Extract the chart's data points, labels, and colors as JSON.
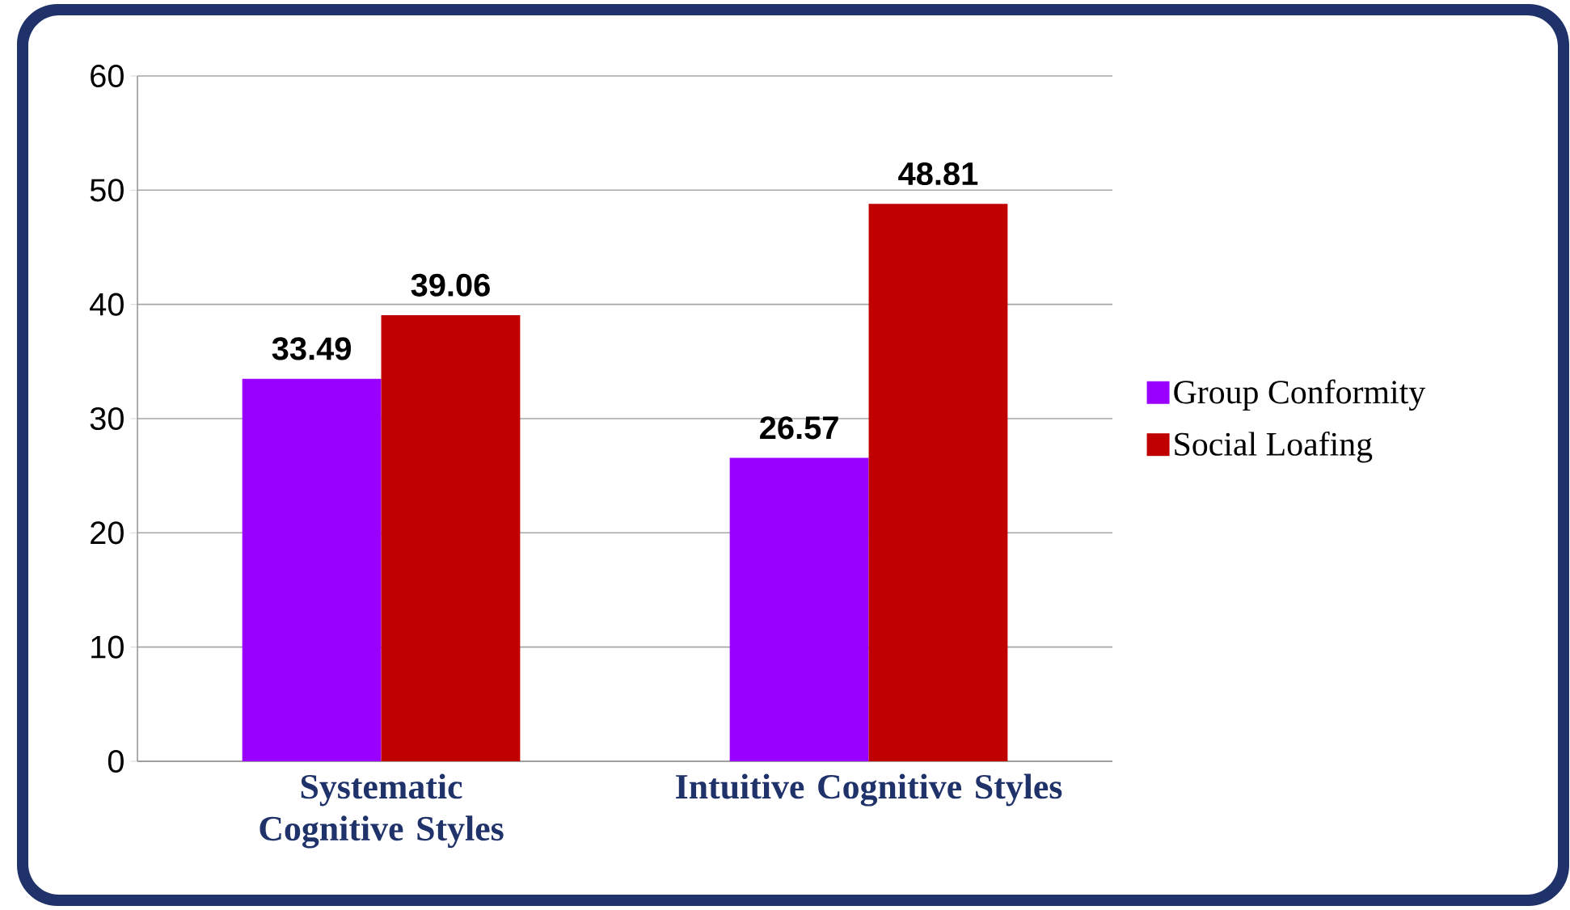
{
  "chart_data": {
    "type": "bar",
    "categories": [
      "Systematic Cognitive Styles",
      "Intuitive Cognitive Styles"
    ],
    "series": [
      {
        "name": "Group Conformity",
        "color": "#9900ff",
        "values": [
          33.49,
          26.57
        ]
      },
      {
        "name": "Social Loafing",
        "color": "#c00000",
        "values": [
          39.06,
          48.81
        ]
      }
    ],
    "ylim": [
      0,
      60
    ],
    "yticks": [
      0,
      10,
      20,
      30,
      40,
      50,
      60
    ],
    "grid": "y",
    "legend": "right",
    "data_labels": true
  }
}
